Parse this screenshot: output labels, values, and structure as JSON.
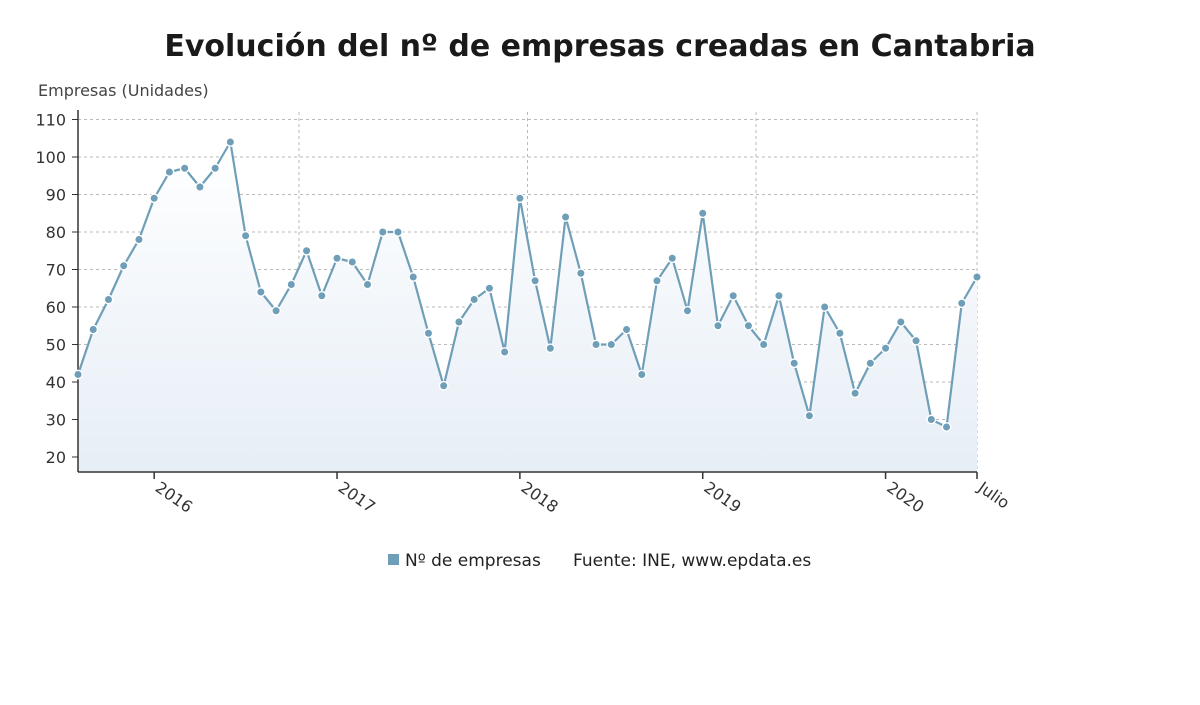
{
  "chart_data": {
    "type": "area",
    "title": "Evolución del nº de empresas creadas en Cantabria",
    "ylabel": "Empresas (Unidades)",
    "ylim": [
      16,
      112
    ],
    "yticks": [
      20,
      30,
      40,
      50,
      60,
      70,
      80,
      90,
      100,
      110
    ],
    "x_tick_labels": [
      {
        "label": "2016",
        "index": 5
      },
      {
        "label": "2017",
        "index": 17
      },
      {
        "label": "2018",
        "index": 29
      },
      {
        "label": "2019",
        "index": 41
      },
      {
        "label": "2020",
        "index": 53
      },
      {
        "label": "Julio",
        "index": 59
      }
    ],
    "grid": true,
    "line_color": "#6f9fb8",
    "marker_color": "#6f9fb8",
    "fill_color_top": "#ffffff",
    "fill_color_bottom": "#e6eef6",
    "series": [
      {
        "name": "Nº de empresas",
        "values": [
          42,
          54,
          62,
          71,
          78,
          89,
          96,
          97,
          92,
          97,
          104,
          79,
          64,
          59,
          66,
          75,
          63,
          73,
          72,
          66,
          80,
          80,
          68,
          53,
          39,
          56,
          62,
          65,
          48,
          89,
          67,
          49,
          84,
          69,
          50,
          50,
          54,
          42,
          67,
          73,
          59,
          85,
          55,
          63,
          55,
          50,
          63,
          45,
          31,
          60,
          53,
          37,
          45,
          49,
          56,
          51,
          30,
          28,
          61,
          68
        ]
      }
    ]
  },
  "legend": {
    "series_label": "Nº de empresas",
    "source": "Fuente: INE, www.epdata.es"
  }
}
